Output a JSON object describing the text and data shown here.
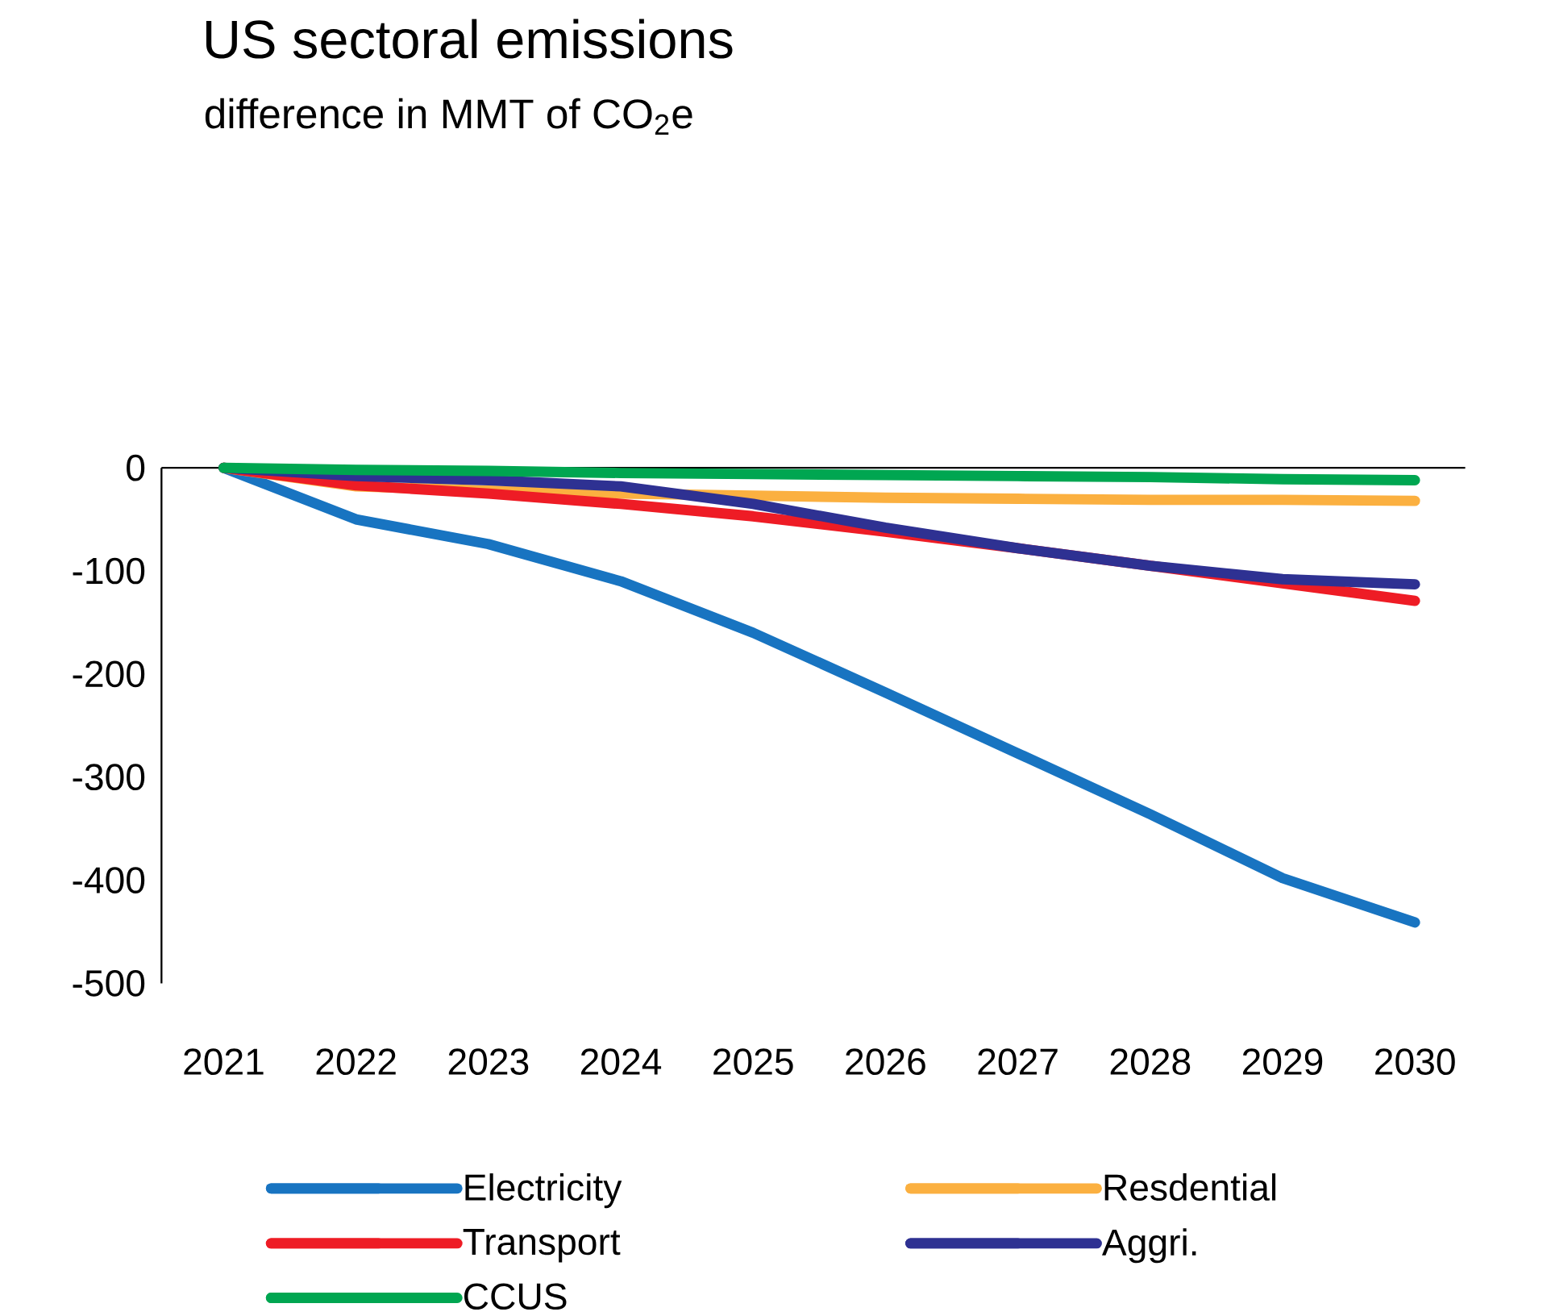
{
  "chart_data": {
    "type": "line",
    "title": "US sectoral emissions",
    "subtitle": "difference in MMT of CO$_{2}$e",
    "categories": [
      "2021",
      "2022",
      "2023",
      "2024",
      "2025",
      "2026",
      "2027",
      "2028",
      "2029",
      "2030"
    ],
    "ylim": [
      -500,
      0
    ],
    "yticks": [
      0,
      -100,
      -200,
      -300,
      -400,
      -500
    ],
    "grid": false,
    "legend": "bottom",
    "marker": "none",
    "line_style": "solid",
    "series": [
      {
        "name": "Electricity",
        "color": "#1874c1",
        "values": [
          0,
          -50,
          -74,
          -110,
          -160,
          -218,
          -277,
          -336,
          -398,
          -441
        ]
      },
      {
        "name": "Resdential",
        "color": "#fbb040",
        "values": [
          0,
          -18,
          -22,
          -25,
          -27,
          -29,
          -30,
          -31,
          -31,
          -32
        ]
      },
      {
        "name": "Transport",
        "color": "#ee1c25",
        "values": [
          0,
          -17,
          -25,
          -35,
          -47,
          -62,
          -78,
          -95,
          -112,
          -129
        ]
      },
      {
        "name": "Aggri.",
        "color": "#2e3192",
        "values": [
          0,
          -8,
          -12,
          -18,
          -35,
          -58,
          -78,
          -95,
          -108,
          -113
        ]
      },
      {
        "name": "CCUS",
        "color": "#00a651",
        "values": [
          0,
          -2,
          -3,
          -5,
          -6,
          -7,
          -8,
          -9,
          -11,
          -12
        ]
      }
    ]
  }
}
